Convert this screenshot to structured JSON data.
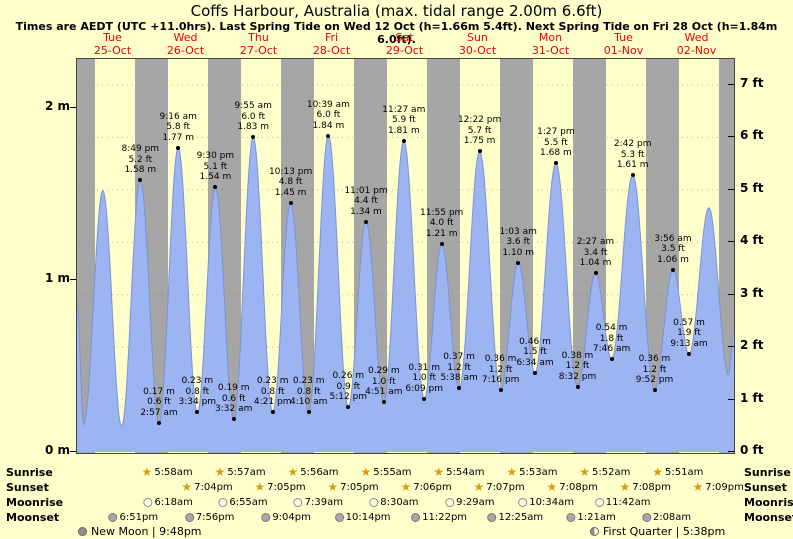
{
  "title": "Coffs Harbour, Australia (max. tidal range 2.00m 6.6ft)",
  "subtitle": "Times are AEDT (UTC +11.0hrs). Last Spring Tide on Wed 12 Oct (h=1.66m 5.4ft). Next Spring Tide on Fri 28 Oct (h=1.84m 6.0ft).",
  "days": [
    {
      "name": "Tue",
      "date": "25-Oct"
    },
    {
      "name": "Wed",
      "date": "26-Oct"
    },
    {
      "name": "Thu",
      "date": "27-Oct"
    },
    {
      "name": "Fri",
      "date": "28-Oct"
    },
    {
      "name": "Sat",
      "date": "29-Oct"
    },
    {
      "name": "Sun",
      "date": "30-Oct"
    },
    {
      "name": "Mon",
      "date": "31-Oct"
    },
    {
      "name": "Tue",
      "date": "01-Nov"
    },
    {
      "name": "Wed",
      "date": "02-Nov"
    }
  ],
  "axes": {
    "left_labels": [
      {
        "text": "2 m",
        "value": 2
      },
      {
        "text": "1 m",
        "value": 1
      },
      {
        "text": "0 m",
        "value": 0
      }
    ],
    "right_labels": [
      {
        "text": "7 ft",
        "value": 7
      },
      {
        "text": "6 ft",
        "value": 6
      },
      {
        "text": "5 ft",
        "value": 5
      },
      {
        "text": "4 ft",
        "value": 4
      },
      {
        "text": "3 ft",
        "value": 3
      },
      {
        "text": "2 ft",
        "value": 2
      },
      {
        "text": "1 ft",
        "value": 1
      },
      {
        "text": "0 ft",
        "value": 0
      }
    ]
  },
  "colors": {
    "background": "#ffffcc",
    "night_band": "#a6a6a6",
    "tide_fill": "#9db4f2",
    "tide_stroke": "#7b94d6",
    "day_label": "#ee0000"
  },
  "chart_data": {
    "type": "area",
    "x_range_days": 9,
    "x_start_day": "Tue 25-Oct",
    "y_axis_left_units": "m",
    "y_axis_right_units": "ft",
    "ylim_m": [
      0,
      2.29
    ],
    "tide_events": [
      {
        "day": 0,
        "time": "12:00 am",
        "height_m": 0.88,
        "kind": "edge",
        "annotated": false
      },
      {
        "day": 0,
        "time": "2:10 am",
        "height_m": 0.16,
        "kind": "low",
        "annotated": false
      },
      {
        "day": 0,
        "time": "8:30 am",
        "height_m": 1.52,
        "kind": "high",
        "annotated": false
      },
      {
        "day": 0,
        "time": "2:40 pm",
        "height_m": 0.15,
        "kind": "low",
        "annotated": false
      },
      {
        "day": 0,
        "time": "8:49 pm",
        "height_m": 1.58,
        "kind": "high",
        "annotated": true,
        "lines": [
          "8:49 pm",
          "5.2 ft",
          "1.58 m"
        ]
      },
      {
        "day": 1,
        "time": "2:57 am",
        "height_m": 0.17,
        "kind": "low",
        "annotated": true,
        "lines": [
          "0.17 m",
          "0.6 ft",
          "2:57 am"
        ]
      },
      {
        "day": 1,
        "time": "9:16 am",
        "height_m": 1.77,
        "kind": "high",
        "annotated": true,
        "lines": [
          "9:16 am",
          "5.8 ft",
          "1.77 m"
        ]
      },
      {
        "day": 1,
        "time": "3:34 pm",
        "height_m": 0.23,
        "kind": "low",
        "annotated": true,
        "lines": [
          "0.23 m",
          "0.8 ft",
          "3:34 pm"
        ]
      },
      {
        "day": 1,
        "time": "9:30 pm",
        "height_m": 1.54,
        "kind": "high",
        "annotated": true,
        "lines": [
          "9:30 pm",
          "5.1 ft",
          "1.54 m"
        ]
      },
      {
        "day": 2,
        "time": "3:32 am",
        "height_m": 0.19,
        "kind": "low",
        "annotated": true,
        "lines": [
          "0.19 m",
          "0.6 ft",
          "3:32 am"
        ]
      },
      {
        "day": 2,
        "time": "9:55 am",
        "height_m": 1.83,
        "kind": "high",
        "annotated": true,
        "lines": [
          "9:55 am",
          "6.0 ft",
          "1.83 m"
        ]
      },
      {
        "day": 2,
        "time": "4:21 pm",
        "height_m": 0.23,
        "kind": "low",
        "annotated": true,
        "lines": [
          "0.23 m",
          "0.8 ft",
          "4:21 pm"
        ]
      },
      {
        "day": 2,
        "time": "10:13 pm",
        "height_m": 1.45,
        "kind": "high",
        "annotated": true,
        "lines": [
          "10:13 pm",
          "4.8 ft",
          "1.45 m"
        ]
      },
      {
        "day": 3,
        "time": "4:10 am",
        "height_m": 0.23,
        "kind": "low",
        "annotated": true,
        "lines": [
          "0.23 m",
          "0.8 ft",
          "4:10 am"
        ]
      },
      {
        "day": 3,
        "time": "10:39 am",
        "height_m": 1.84,
        "kind": "high",
        "annotated": true,
        "lines": [
          "10:39 am",
          "6.0 ft",
          "1.84 m"
        ]
      },
      {
        "day": 3,
        "time": "5:12 pm",
        "height_m": 0.26,
        "kind": "low",
        "annotated": true,
        "lines": [
          "0.26 m",
          "0.9 ft",
          "5:12 pm"
        ]
      },
      {
        "day": 3,
        "time": "11:01 pm",
        "height_m": 1.34,
        "kind": "high",
        "annotated": true,
        "lines": [
          "11:01 pm",
          "4.4 ft",
          "1.34 m"
        ]
      },
      {
        "day": 4,
        "time": "4:51 am",
        "height_m": 0.29,
        "kind": "low",
        "annotated": true,
        "lines": [
          "0.29 m",
          "1.0 ft",
          "4:51 am"
        ]
      },
      {
        "day": 4,
        "time": "11:27 am",
        "height_m": 1.81,
        "kind": "high",
        "annotated": true,
        "lines": [
          "11:27 am",
          "5.9 ft",
          "1.81 m"
        ]
      },
      {
        "day": 4,
        "time": "6:09 pm",
        "height_m": 0.31,
        "kind": "low",
        "annotated": true,
        "lines": [
          "0.31 m",
          "1.0 ft",
          "6:09 pm"
        ]
      },
      {
        "day": 4,
        "time": "11:55 pm",
        "height_m": 1.21,
        "kind": "high",
        "annotated": true,
        "lines": [
          "11:55 pm",
          "4.0 ft",
          "1.21 m"
        ]
      },
      {
        "day": 5,
        "time": "5:38 am",
        "height_m": 0.37,
        "kind": "low",
        "annotated": true,
        "lines": [
          "0.37 m",
          "1.2 ft",
          "5:38 am"
        ]
      },
      {
        "day": 5,
        "time": "12:22 pm",
        "height_m": 1.75,
        "kind": "high",
        "annotated": true,
        "lines": [
          "12:22 pm",
          "5.7 ft",
          "1.75 m"
        ]
      },
      {
        "day": 5,
        "time": "7:16 pm",
        "height_m": 0.36,
        "kind": "low",
        "annotated": true,
        "lines": [
          "0.36 m",
          "1.2 ft",
          "7:16 pm"
        ]
      },
      {
        "day": 6,
        "time": "1:03 am",
        "height_m": 1.1,
        "kind": "high",
        "annotated": true,
        "lines": [
          "1:03 am",
          "3.6 ft",
          "1.10 m"
        ]
      },
      {
        "day": 6,
        "time": "6:34 am",
        "height_m": 0.46,
        "kind": "low",
        "annotated": true,
        "lines": [
          "0.46 m",
          "1.5 ft",
          "6:34 am"
        ]
      },
      {
        "day": 6,
        "time": "1:27 pm",
        "height_m": 1.68,
        "kind": "high",
        "annotated": true,
        "lines": [
          "1:27 pm",
          "5.5 ft",
          "1.68 m"
        ]
      },
      {
        "day": 6,
        "time": "8:32 pm",
        "height_m": 0.38,
        "kind": "low",
        "annotated": true,
        "lines": [
          "0.38 m",
          "1.2 ft",
          "8:32 pm"
        ]
      },
      {
        "day": 7,
        "time": "2:27 am",
        "height_m": 1.04,
        "kind": "high",
        "annotated": true,
        "lines": [
          "2:27 am",
          "3.4 ft",
          "1.04 m"
        ]
      },
      {
        "day": 7,
        "time": "7:46 am",
        "height_m": 0.54,
        "kind": "low",
        "annotated": true,
        "lines": [
          "0.54 m",
          "1.8 ft",
          "7:46 am"
        ]
      },
      {
        "day": 7,
        "time": "2:42 pm",
        "height_m": 1.61,
        "kind": "high",
        "annotated": true,
        "lines": [
          "2:42 pm",
          "5.3 ft",
          "1.61 m"
        ]
      },
      {
        "day": 7,
        "time": "9:52 pm",
        "height_m": 0.36,
        "kind": "low",
        "annotated": true,
        "lines": [
          "0.36 m",
          "1.2 ft",
          "9:52 pm"
        ]
      },
      {
        "day": 8,
        "time": "3:56 am",
        "height_m": 1.06,
        "kind": "high",
        "annotated": true,
        "lines": [
          "3:56 am",
          "3.5 ft",
          "1.06 m"
        ]
      },
      {
        "day": 8,
        "time": "9:13 am",
        "height_m": 0.57,
        "kind": "low",
        "annotated": true,
        "lines": [
          "0.57 m",
          "1.9 ft",
          "9:13 am"
        ]
      },
      {
        "day": 8,
        "time": "3:45 pm",
        "height_m": 1.42,
        "kind": "high",
        "annotated": false
      },
      {
        "day": 8,
        "time": "10:10 pm",
        "height_m": 0.45,
        "kind": "low",
        "annotated": false
      },
      {
        "day": 8,
        "time": "11:59 pm",
        "height_m": 0.7,
        "kind": "edge",
        "annotated": false
      }
    ]
  },
  "astro": {
    "row_labels": [
      "Sunrise",
      "Sunset",
      "Moonrise",
      "Moonset"
    ],
    "sunrise": [
      {
        "day": 1,
        "time": "5:58am"
      },
      {
        "day": 2,
        "time": "5:57am"
      },
      {
        "day": 3,
        "time": "5:56am"
      },
      {
        "day": 4,
        "time": "5:55am"
      },
      {
        "day": 5,
        "time": "5:54am"
      },
      {
        "day": 6,
        "time": "5:53am"
      },
      {
        "day": 7,
        "time": "5:52am"
      },
      {
        "day": 8,
        "time": "5:51am"
      }
    ],
    "sunset": [
      {
        "day": 1,
        "time": "7:04pm"
      },
      {
        "day": 2,
        "time": "7:05pm"
      },
      {
        "day": 3,
        "time": "7:05pm"
      },
      {
        "day": 4,
        "time": "7:06pm"
      },
      {
        "day": 5,
        "time": "7:07pm"
      },
      {
        "day": 6,
        "time": "7:08pm"
      },
      {
        "day": 7,
        "time": "7:08pm"
      },
      {
        "day": 8,
        "time": "7:09pm"
      }
    ],
    "moonrise": [
      {
        "day": 1,
        "time": "6:18am"
      },
      {
        "day": 2,
        "time": "6:55am"
      },
      {
        "day": 3,
        "time": "7:39am"
      },
      {
        "day": 4,
        "time": "8:30am"
      },
      {
        "day": 5,
        "time": "9:29am"
      },
      {
        "day": 6,
        "time": "10:34am"
      },
      {
        "day": 7,
        "time": "11:42am"
      }
    ],
    "moonset": [
      {
        "day": 0,
        "time": "6:51pm"
      },
      {
        "day": 1,
        "time": "7:56pm"
      },
      {
        "day": 2,
        "time": "9:04pm"
      },
      {
        "day": 3,
        "time": "10:14pm"
      },
      {
        "day": 4,
        "time": "11:22pm"
      },
      {
        "day": 6,
        "time": "12:25am"
      },
      {
        "day": 7,
        "time": "1:21am"
      },
      {
        "day": 8,
        "time": "2:08am"
      }
    ],
    "phases": [
      {
        "name": "New Moon",
        "time": "9:48pm"
      },
      {
        "name": "First Quarter",
        "time": "5:38pm"
      }
    ]
  }
}
